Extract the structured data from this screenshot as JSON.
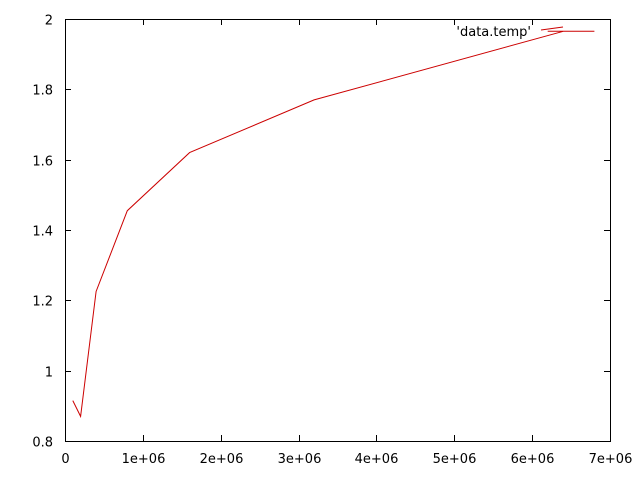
{
  "chart_data": {
    "type": "line",
    "title": "",
    "xlabel": "",
    "ylabel": "",
    "xlim": [
      0,
      7000000
    ],
    "ylim": [
      0.8,
      2.0
    ],
    "xticks": [
      0,
      1000000,
      2000000,
      3000000,
      4000000,
      5000000,
      6000000,
      7000000
    ],
    "xtick_labels": [
      "0",
      "1e+06",
      "2e+06",
      "3e+06",
      "4e+06",
      "5e+06",
      "6e+06",
      "7e+06"
    ],
    "yticks": [
      0.8,
      1.0,
      1.2,
      1.4,
      1.6,
      1.8,
      2.0
    ],
    "ytick_labels": [
      "0.8",
      "1",
      "1.2",
      "1.4",
      "1.6",
      "1.8",
      "2"
    ],
    "grid": false,
    "legend_position": "top-right",
    "colors": {
      "series": "#cc0000",
      "axes": "#000000",
      "background": "#ffffff"
    },
    "series": [
      {
        "name": "'data.temp'",
        "x": [
          100000,
          200000,
          400000,
          800000,
          1600000,
          3200000,
          6400000,
          6200000,
          6800000
        ],
        "y": [
          0.915,
          0.87,
          1.225,
          1.455,
          1.62,
          1.77,
          1.965,
          1.965,
          1.965
        ]
      }
    ]
  }
}
